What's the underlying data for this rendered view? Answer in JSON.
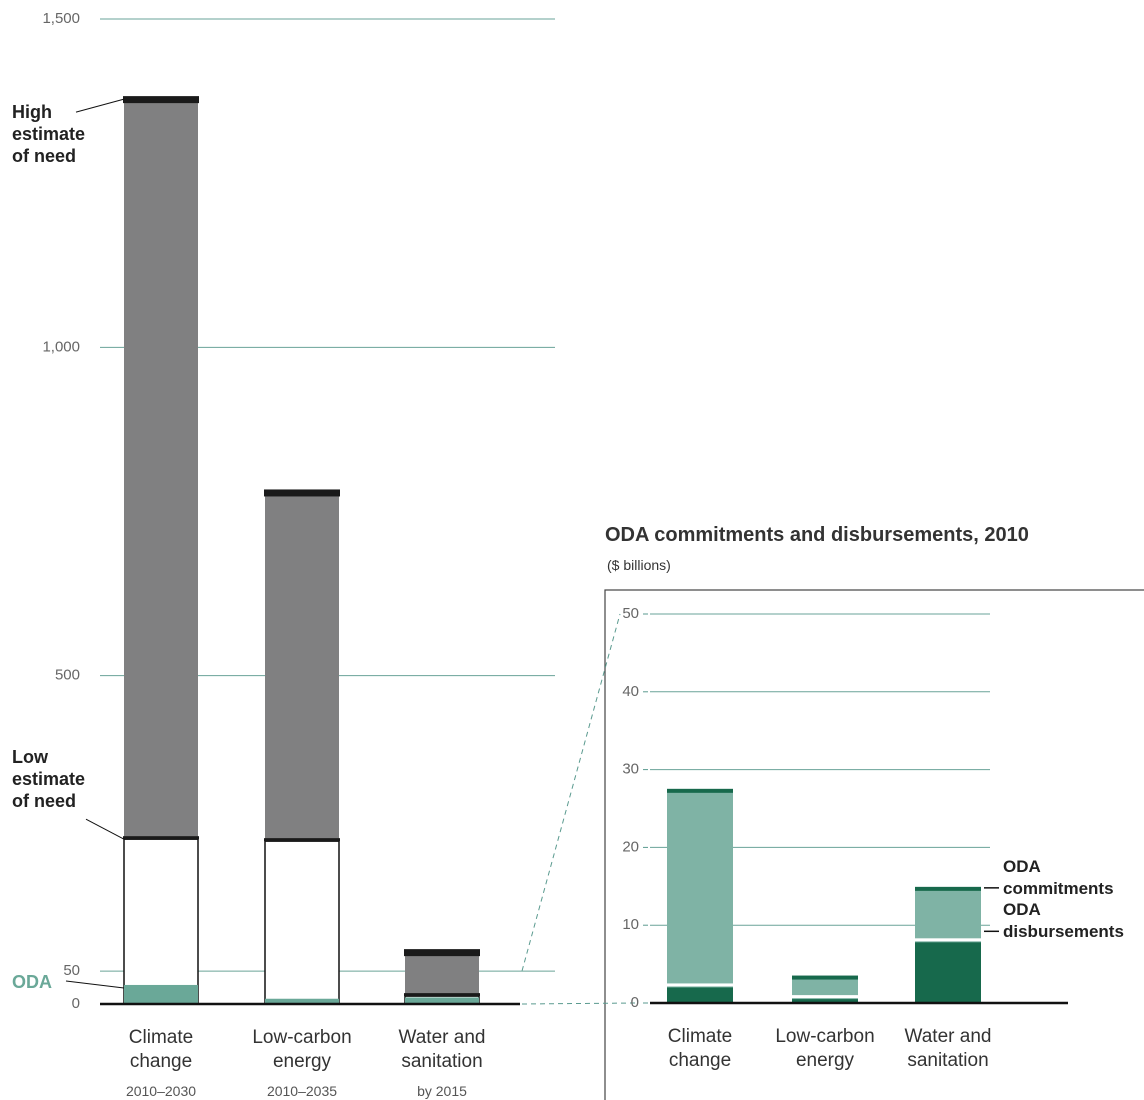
{
  "chart_data": [
    {
      "type": "bar",
      "categories": [
        "Climate change",
        "Low-carbon energy",
        "Water and sanitation"
      ],
      "periods": [
        "2010–2030",
        "2010–2035",
        "by 2015"
      ],
      "series": [
        {
          "name": "High estimate of need",
          "color": "#808081",
          "values": [
            1378,
            779,
            79
          ]
        },
        {
          "name": "Low estimate of need",
          "color": "#ffffff",
          "values": [
            251,
            248,
            12
          ]
        },
        {
          "name": "ODA",
          "color": "#6aa898",
          "values": [
            29,
            8,
            10
          ]
        }
      ],
      "ylim": [
        0,
        1500
      ],
      "yticks": [
        0,
        50,
        500,
        {
          "value": 1000,
          "label": "1,000"
        },
        {
          "value": 1500,
          "label": "1,500"
        }
      ],
      "grid": true
    },
    {
      "type": "bar",
      "title": "ODA commitments and disbursements, 2010",
      "subtitle": "($ billions)",
      "categories": [
        "Climate change",
        "Low-carbon energy",
        "Water and sanitation"
      ],
      "series": [
        {
          "name": "ODA commitments",
          "color": "#7fb3a5",
          "values": [
            27.4,
            3.4,
            14.8
          ]
        },
        {
          "name": "ODA disbursements",
          "color": "#17694c",
          "values": [
            2,
            0.5,
            7.8
          ]
        }
      ],
      "ylim": [
        0,
        50
      ],
      "yticks": [
        0,
        10,
        20,
        30,
        40,
        50
      ],
      "grid": true
    }
  ]
}
